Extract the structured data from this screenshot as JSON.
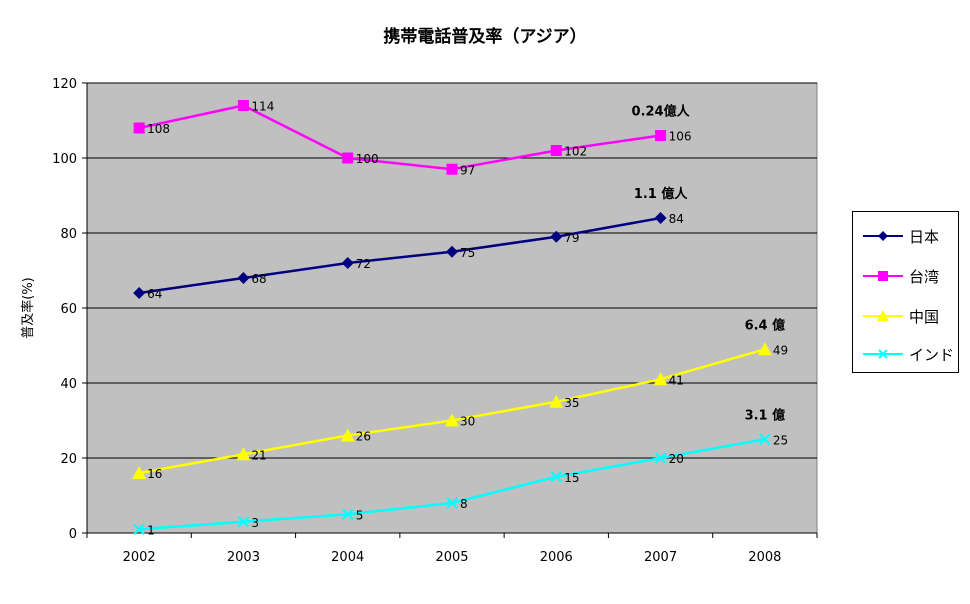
{
  "chart_data": {
    "type": "line",
    "title": "携帯電話普及率（アジア）",
    "xlabel": "",
    "ylabel": "普及率(%)",
    "ylim": [
      0,
      120
    ],
    "yticks": [
      0,
      20,
      40,
      60,
      80,
      100,
      120
    ],
    "categories": [
      "2002",
      "2003",
      "2004",
      "2005",
      "2006",
      "2007",
      "2008"
    ],
    "grid": true,
    "legend": "right",
    "plot_bg": "#c0c0c0",
    "series": [
      {
        "name": "日本",
        "color": "#000080",
        "marker": "diamond",
        "values": [
          64,
          68,
          72,
          75,
          79,
          84,
          null
        ]
      },
      {
        "name": "台湾",
        "color": "#ff00ff",
        "marker": "square",
        "values": [
          108,
          114,
          100,
          97,
          102,
          106,
          null
        ]
      },
      {
        "name": "中国",
        "color": "#ffff00",
        "marker": "triangle",
        "values": [
          16,
          21,
          26,
          30,
          35,
          41,
          49
        ]
      },
      {
        "name": "インド",
        "color": "#00ffff",
        "marker": "x",
        "values": [
          1,
          3,
          5,
          8,
          15,
          20,
          25
        ]
      }
    ],
    "annotations": [
      {
        "text": "0.24億人",
        "series": 1,
        "index": 5
      },
      {
        "text": "1.1 億人",
        "series": 0,
        "index": 5
      },
      {
        "text": "6.4 億",
        "series": 2,
        "index": 6
      },
      {
        "text": "3.1 億",
        "series": 3,
        "index": 6
      }
    ]
  }
}
